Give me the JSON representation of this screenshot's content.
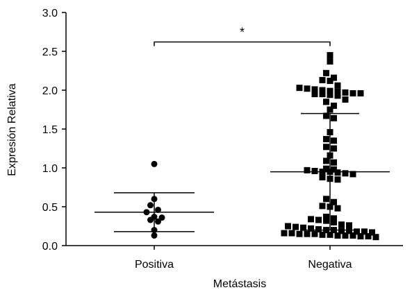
{
  "chart_data": {
    "type": "scatter",
    "xlabel": "Metástasis",
    "ylabel": "Expresión Relativa",
    "ylim": [
      0,
      3.0
    ],
    "yticks": [
      "0.0",
      "0.5",
      "1.0",
      "1.5",
      "2.0",
      "2.5",
      "3.0"
    ],
    "categories": [
      "Positiva",
      "Negativa"
    ],
    "grid": false,
    "legend": "none",
    "series": [
      {
        "category": "Positiva",
        "marker": "circle",
        "values": [
          1.05,
          0.6,
          0.52,
          0.46,
          0.43,
          0.37,
          0.36,
          0.33,
          0.31,
          0.2,
          0.13
        ],
        "mean": 0.43,
        "error_upper": 0.68,
        "error_lower": 0.18
      },
      {
        "category": "Negativa",
        "marker": "square",
        "values": [
          2.45,
          2.37,
          2.22,
          2.16,
          2.13,
          2.12,
          2.06,
          2.03,
          2.02,
          2.01,
          2.0,
          1.99,
          1.98,
          1.97,
          1.96,
          1.96,
          1.95,
          1.95,
          1.94,
          1.93,
          1.88,
          1.85,
          1.8,
          1.75,
          1.67,
          1.64,
          1.46,
          1.37,
          1.35,
          1.27,
          1.25,
          1.16,
          1.09,
          1.07,
          0.99,
          0.98,
          0.97,
          0.96,
          0.95,
          0.95,
          0.94,
          0.93,
          0.92,
          0.88,
          0.86,
          0.85,
          0.6,
          0.56,
          0.51,
          0.5,
          0.48,
          0.37,
          0.35,
          0.34,
          0.33,
          0.32,
          0.3,
          0.27,
          0.26,
          0.25,
          0.24,
          0.23,
          0.22,
          0.21,
          0.2,
          0.2,
          0.19,
          0.19,
          0.18,
          0.18,
          0.17,
          0.16,
          0.16,
          0.15,
          0.15,
          0.15,
          0.14,
          0.14,
          0.13,
          0.13,
          0.13,
          0.12,
          0.12,
          0.11
        ],
        "mean": 0.95,
        "error_upper": 1.7,
        "error_lower": 0.2
      }
    ],
    "annotations": [
      {
        "text": "*",
        "from": "Positiva",
        "to": "Negativa",
        "y": 2.62
      }
    ]
  }
}
